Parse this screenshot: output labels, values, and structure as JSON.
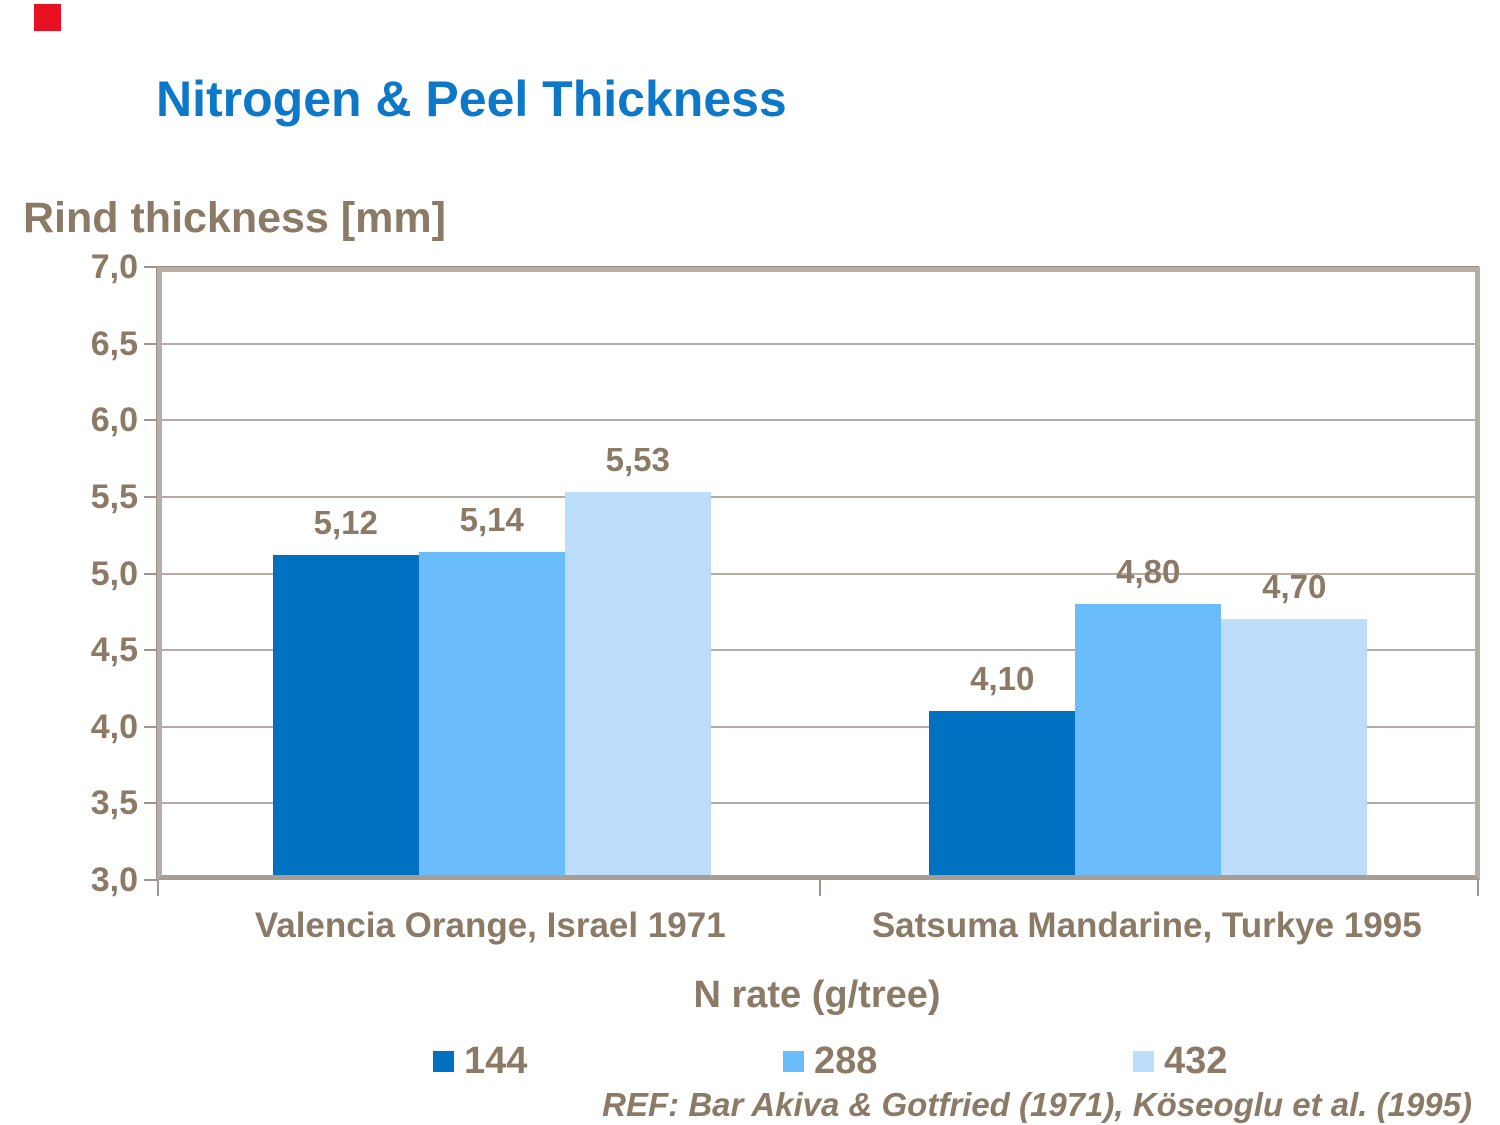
{
  "slide": {
    "title": "Nitrogen & Peel Thickness",
    "title_color": "#0d78c8",
    "text_color": "#8a7a66",
    "corner_marker_color": "#e81123"
  },
  "chart_data": {
    "type": "bar",
    "title": "Nitrogen & Peel Thickness",
    "ylabel": "Rind thickness [mm]",
    "xlabel": "N rate (g/tree)",
    "categories": [
      "Valencia Orange, Israel 1971",
      "Satsuma Mandarine, Turkye 1995"
    ],
    "series": [
      {
        "name": "144",
        "color": "#0070c0",
        "values": [
          5.12,
          4.1
        ],
        "labels": [
          "5,12",
          "4,10"
        ]
      },
      {
        "name": "288",
        "color": "#6abcfa",
        "values": [
          5.14,
          4.8
        ],
        "labels": [
          "5,14",
          "4,80"
        ]
      },
      {
        "name": "432",
        "color": "#bddefa",
        "values": [
          5.53,
          4.7
        ],
        "labels": [
          "5,53",
          "4,70"
        ]
      }
    ],
    "ylim": [
      3.0,
      7.0
    ],
    "ytick_step": 0.5,
    "ytick_labels": [
      "3,0",
      "3,5",
      "4,0",
      "4,5",
      "5,0",
      "5,5",
      "6,0",
      "6,5",
      "7,0"
    ],
    "decimal_separator": ",",
    "grid": true,
    "legend_position": "bottom"
  },
  "footer": {
    "ref": "REF: Bar Akiva & Gotfried (1971), Köseoglu et al. (1995)"
  }
}
